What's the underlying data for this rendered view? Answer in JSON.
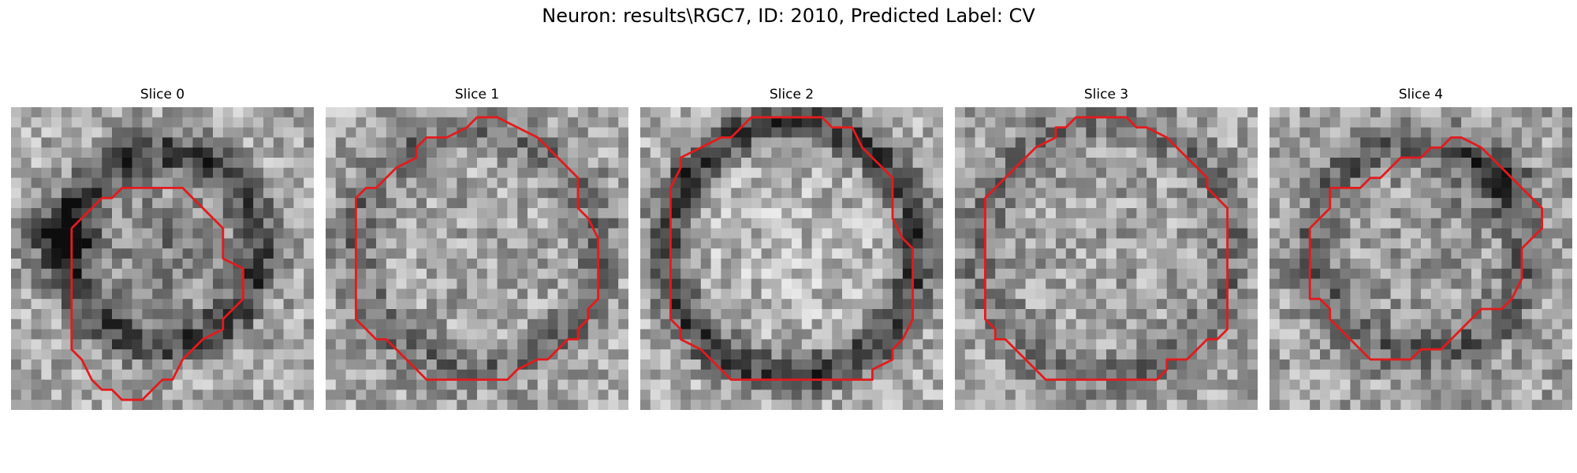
{
  "figure": {
    "title": "Neuron: results\\RGC7, ID: 2010, Predicted Label: CV"
  },
  "panels": [
    {
      "title": "Slice 0"
    },
    {
      "title": "Slice 1"
    },
    {
      "title": "Slice 2"
    },
    {
      "title": "Slice 3"
    },
    {
      "title": "Slice 4"
    }
  ],
  "colors": {
    "contour": "#e41a1c"
  }
}
